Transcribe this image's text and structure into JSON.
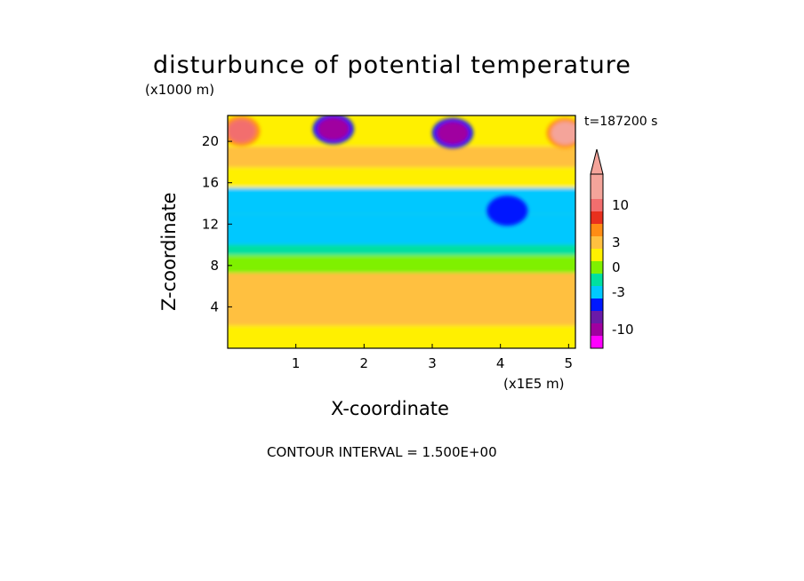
{
  "chart_data": {
    "type": "heatmap",
    "title": "disturbunce of potential temperature",
    "y_unit_label": "(x1000 m)",
    "x_unit_label": "(x1E5 m)",
    "xlabel": "X-coordinate",
    "ylabel": "Z-coordinate",
    "time_label": "t=187200 s",
    "footer": "CONTOUR INTERVAL = 1.500E+00",
    "xlim": [
      0,
      5.1
    ],
    "ylim": [
      0,
      22.5
    ],
    "x_ticks": [
      1,
      2,
      3,
      4,
      5
    ],
    "y_ticks": [
      4,
      8,
      12,
      16,
      20
    ],
    "colorbar": {
      "tick_labels": [
        {
          "label": "10",
          "value": 10
        },
        {
          "label": "3",
          "value": 3
        },
        {
          "label": "0",
          "value": 0
        },
        {
          "label": "-3",
          "value": -3
        },
        {
          "label": "-10",
          "value": -10
        }
      ],
      "levels": [
        {
          "value": 16.5,
          "color": "#f4a49a"
        },
        {
          "value": 12,
          "color": "#f4a49a"
        },
        {
          "value": 9,
          "color": "#f26e6e"
        },
        {
          "value": 6,
          "color": "#e8301e"
        },
        {
          "value": 3.75,
          "color": "#ff8c14"
        },
        {
          "value": 2.25,
          "color": "#ffc040"
        },
        {
          "value": 0.75,
          "color": "#fff000"
        },
        {
          "value": -0.75,
          "color": "#7ff000"
        },
        {
          "value": -2.25,
          "color": "#00e0a0"
        },
        {
          "value": -3.75,
          "color": "#00c8ff"
        },
        {
          "value": -6,
          "color": "#0018ff"
        },
        {
          "value": -9,
          "color": "#6a1aa8"
        },
        {
          "value": -13.5,
          "color": "#a000a0"
        },
        {
          "value": -18,
          "color": "#ff00ff"
        }
      ]
    },
    "bands": [
      {
        "z_range": [
          0.8,
          2.2
        ],
        "value": 1.5
      },
      {
        "z_range": [
          2.2,
          7.3
        ],
        "value": 3.0
      },
      {
        "z_range": [
          7.3,
          9.0
        ],
        "value": 0.0
      },
      {
        "z_range": [
          9.0,
          10.0
        ],
        "value": -2.0
      },
      {
        "z_range": [
          10.0,
          13.0
        ],
        "value": -3.0
      },
      {
        "z_range": [
          13.0,
          15.5
        ],
        "value": -3.5
      },
      {
        "z_range": [
          15.5,
          17.5
        ],
        "value": 1.5
      },
      {
        "z_range": [
          17.5,
          19.5
        ],
        "value": 3.0
      },
      {
        "z_range": [
          19.5,
          22.5
        ],
        "value": 1.5
      }
    ],
    "features": [
      {
        "x": 1.55,
        "z": 21.2,
        "value": -10,
        "label": "negative cell"
      },
      {
        "x": 3.3,
        "z": 20.8,
        "value": -10,
        "label": "negative cell"
      },
      {
        "x": 0.2,
        "z": 21.0,
        "value": 10,
        "label": "positive cell"
      },
      {
        "x": 4.95,
        "z": 20.8,
        "value": 12,
        "label": "positive cell"
      },
      {
        "x": 4.1,
        "z": 13.3,
        "value": -6,
        "label": "negative cell"
      }
    ]
  }
}
